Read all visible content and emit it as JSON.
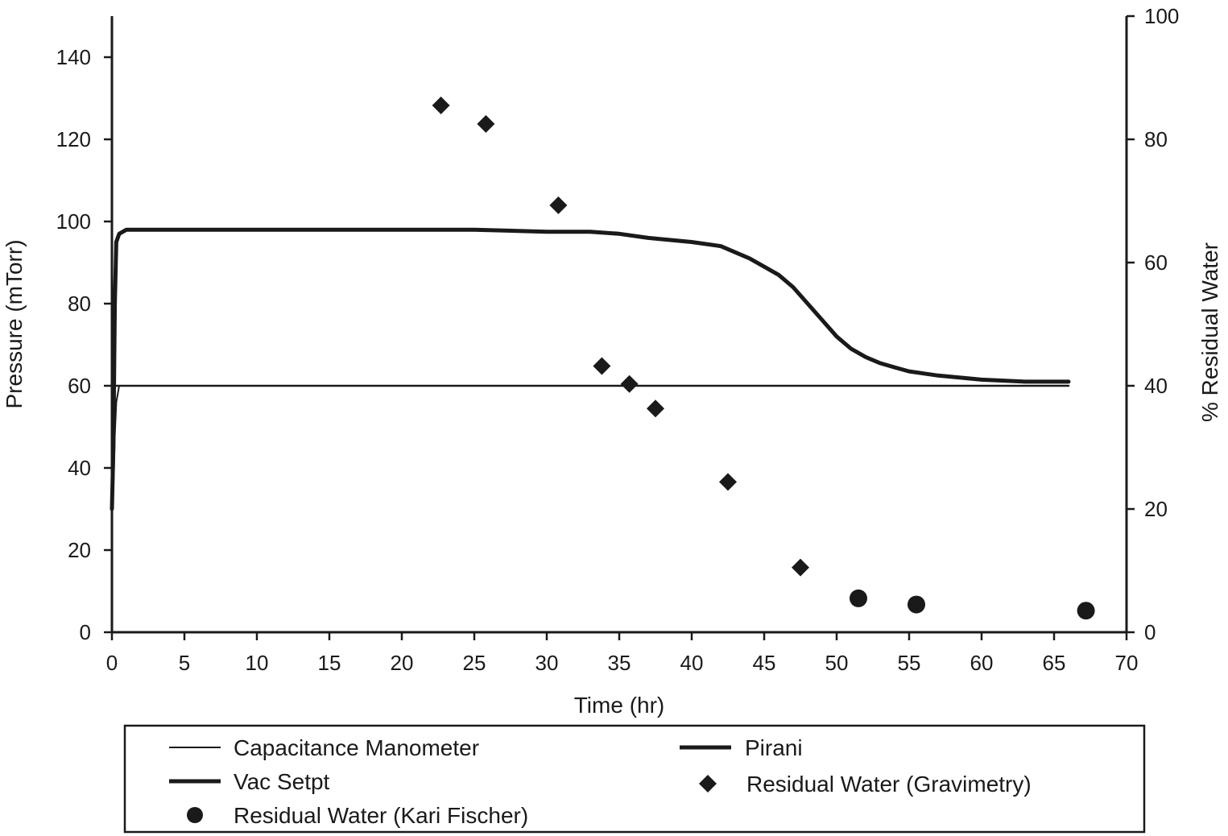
{
  "chart_data": {
    "type": "scatter",
    "title": "",
    "xlabel": "Time (hr)",
    "ylabel": "Pressure (mTorr)",
    "y2label": "% Residual Water",
    "xlim": [
      0,
      70
    ],
    "ylim": [
      0,
      150
    ],
    "y2lim": [
      0,
      100
    ],
    "xticks": [
      0,
      5,
      10,
      15,
      20,
      25,
      30,
      35,
      40,
      45,
      50,
      55,
      60,
      65,
      70
    ],
    "yticks": [
      0,
      20,
      40,
      60,
      80,
      100,
      120,
      140
    ],
    "y2ticks": [
      0,
      20,
      40,
      60,
      80,
      100
    ],
    "grid": false,
    "legend_position": "bottom",
    "series": [
      {
        "name": "Capacitance Manometer",
        "kind": "line",
        "axis": "left",
        "x": [
          0,
          0.1,
          0.2,
          0.3,
          0.5,
          1,
          5,
          10,
          15,
          20,
          25,
          30,
          35,
          40,
          45,
          50,
          55,
          60,
          66
        ],
        "y": [
          28,
          35,
          48,
          56,
          60,
          60,
          60,
          60,
          60,
          60,
          60,
          60,
          60,
          60,
          60,
          60,
          60,
          60,
          60
        ]
      },
      {
        "name": "Pirani",
        "kind": "line",
        "axis": "left",
        "x": [
          0,
          0.1,
          0.2,
          0.3,
          0.5,
          1,
          5,
          10,
          15,
          20,
          25,
          30,
          33,
          35,
          37,
          40,
          42,
          44,
          46,
          47,
          48,
          49,
          50,
          51,
          52,
          53,
          54,
          55,
          57,
          60,
          63,
          66
        ],
        "y": [
          30,
          45,
          80,
          95,
          97,
          98,
          98,
          98,
          98,
          98,
          98,
          97.5,
          97.5,
          97,
          96,
          95,
          94,
          91,
          87,
          84,
          80,
          76,
          72,
          69,
          67,
          65.5,
          64.5,
          63.5,
          62.5,
          61.5,
          61,
          61
        ]
      },
      {
        "name": "Vac Setpt",
        "kind": "line",
        "axis": "left",
        "x": [
          0.3,
          66
        ],
        "y": [
          60,
          60
        ]
      },
      {
        "name": "Residual Water (Gravimetry)",
        "kind": "scatter",
        "marker": "diamond",
        "axis": "right",
        "x": [
          22.7,
          25.8,
          30.8,
          33.8,
          35.7,
          37.5,
          42.5,
          47.5
        ],
        "y": [
          85.5,
          82.5,
          69.3,
          43.2,
          40.3,
          36.3,
          24.4,
          10.5
        ]
      },
      {
        "name": "Residual Water (Kari Fischer)",
        "kind": "scatter",
        "marker": "circle",
        "axis": "right",
        "x": [
          51.5,
          55.5,
          67.2
        ],
        "y": [
          5.5,
          4.5,
          3.5
        ]
      }
    ]
  }
}
